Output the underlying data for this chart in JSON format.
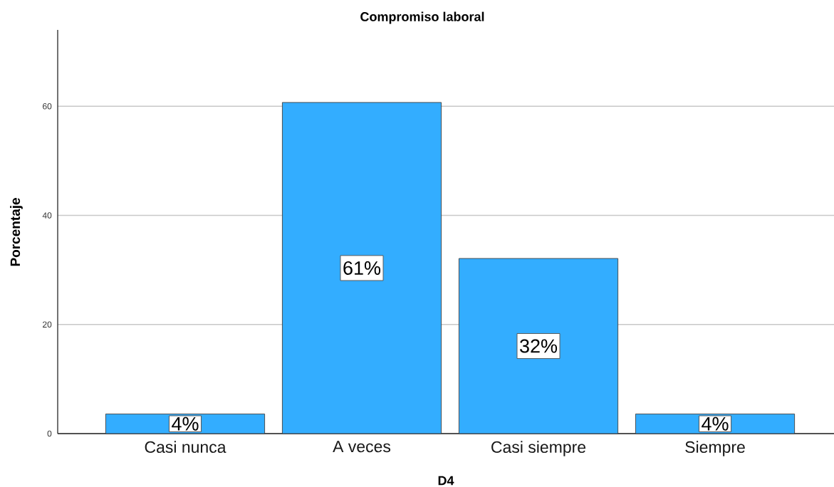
{
  "chart_data": {
    "type": "bar",
    "title": "Compromiso laboral",
    "xlabel": "D4",
    "ylabel": "Porcentaje",
    "categories": [
      "Casi nunca",
      "A veces",
      "Casi siempre",
      "Siempre"
    ],
    "values": [
      3.6,
      60.7,
      32.1,
      3.6
    ],
    "value_labels": [
      "4%",
      "61%",
      "32%",
      "4%"
    ],
    "color": "#33adff",
    "ylim": [
      0,
      74
    ],
    "yticks": [
      0,
      20,
      40,
      60
    ],
    "grid": "y"
  }
}
